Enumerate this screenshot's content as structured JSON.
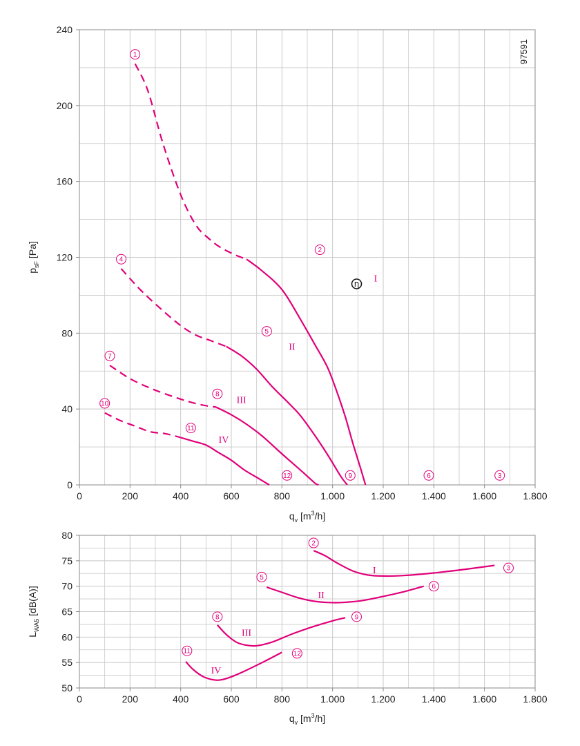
{
  "colors": {
    "curve": "#e0007a",
    "grid": "#c8c8c8",
    "frame": "#888888",
    "text": "#222222"
  },
  "chart_data": [
    {
      "type": "line",
      "id": "pressure",
      "ylabel_main": "p",
      "ylabel_sub": "sF",
      "ylabel_unit": " [Pa]",
      "xlabel_main": "q",
      "xlabel_sub": "v",
      "xlabel_unit": " [m",
      "xlabel_sup": "3",
      "xlabel_end": "/h]",
      "code": "97591",
      "xlim": [
        0,
        1800
      ],
      "ylim": [
        0,
        240
      ],
      "x_ticks": [
        0,
        200,
        400,
        600,
        800,
        1000,
        1200,
        1400,
        1600,
        1800
      ],
      "x_tick_labels": [
        "0",
        "200",
        "400",
        "600",
        "800",
        "1.000",
        "1.200",
        "1.400",
        "1.600",
        "1.800"
      ],
      "y_ticks": [
        0,
        40,
        80,
        120,
        160,
        200,
        240
      ],
      "y_tick_labels": [
        "0",
        "40",
        "80",
        "120",
        "160",
        "200",
        "240"
      ],
      "grid": true,
      "series": [
        {
          "name": "I",
          "dashed": [
            [
              220,
              222
            ],
            [
              270,
              208
            ],
            [
              330,
              180
            ],
            [
              400,
              153
            ],
            [
              460,
              137
            ],
            [
              510,
              130
            ],
            [
              560,
              125
            ],
            [
              620,
              121
            ],
            [
              660,
              119
            ]
          ],
          "solid": [
            [
              660,
              119
            ],
            [
              720,
              113
            ],
            [
              800,
              103
            ],
            [
              870,
              88
            ],
            [
              930,
              74
            ],
            [
              980,
              62
            ],
            [
              1020,
              48
            ],
            [
              1050,
              36
            ],
            [
              1080,
              22
            ],
            [
              1110,
              9
            ],
            [
              1130,
              0
            ]
          ]
        },
        {
          "name": "II",
          "dashed": [
            [
              165,
              114
            ],
            [
              240,
              103
            ],
            [
              320,
              93
            ],
            [
              400,
              84
            ],
            [
              460,
              79
            ],
            [
              520,
              76
            ],
            [
              580,
              73
            ]
          ],
          "solid": [
            [
              580,
              73
            ],
            [
              640,
              68
            ],
            [
              700,
              61
            ],
            [
              760,
              52
            ],
            [
              820,
              44
            ],
            [
              870,
              37
            ],
            [
              920,
              28
            ],
            [
              980,
              16
            ],
            [
              1030,
              5
            ],
            [
              1058,
              0
            ]
          ]
        },
        {
          "name": "III",
          "dashed": [
            [
              120,
              63
            ],
            [
              200,
              56
            ],
            [
              280,
              51
            ],
            [
              360,
              47
            ],
            [
              430,
              44
            ],
            [
              490,
              42
            ],
            [
              540,
              41
            ]
          ],
          "solid": [
            [
              540,
              41
            ],
            [
              600,
              37
            ],
            [
              660,
              32
            ],
            [
              720,
              26
            ],
            [
              770,
              20
            ],
            [
              820,
              14
            ],
            [
              880,
              7
            ],
            [
              930,
              1
            ],
            [
              945,
              0
            ]
          ]
        },
        {
          "name": "IV",
          "dashed": [
            [
              100,
              38
            ],
            [
              160,
              34
            ],
            [
              220,
              31
            ],
            [
              280,
              28
            ],
            [
              340,
              27
            ],
            [
              400,
              25
            ]
          ],
          "solid": [
            [
              400,
              25
            ],
            [
              450,
              23
            ],
            [
              500,
              21
            ],
            [
              550,
              17
            ],
            [
              600,
              13
            ],
            [
              650,
              8
            ],
            [
              700,
              4
            ],
            [
              750,
              0
            ]
          ]
        }
      ],
      "markers": [
        {
          "label": "1",
          "x": 220,
          "y": 227
        },
        {
          "label": "2",
          "x": 950,
          "y": 124
        },
        {
          "label": "3",
          "x": 1660,
          "y": 5
        },
        {
          "label": "4",
          "x": 165,
          "y": 119
        },
        {
          "label": "5",
          "x": 740,
          "y": 81
        },
        {
          "label": "6",
          "x": 1380,
          "y": 5
        },
        {
          "label": "7",
          "x": 120,
          "y": 68
        },
        {
          "label": "8",
          "x": 545,
          "y": 48
        },
        {
          "label": "9",
          "x": 1070,
          "y": 5
        },
        {
          "label": "10",
          "x": 100,
          "y": 43
        },
        {
          "label": "11",
          "x": 440,
          "y": 30
        },
        {
          "label": "12",
          "x": 820,
          "y": 5
        }
      ],
      "curve_labels": [
        {
          "text": "I",
          "x": 1170,
          "y": 109
        },
        {
          "text": "II",
          "x": 840,
          "y": 73
        },
        {
          "text": "III",
          "x": 640,
          "y": 45
        },
        {
          "text": "IV",
          "x": 570,
          "y": 24
        }
      ],
      "eta_marker": {
        "text": "η",
        "x": 1095,
        "y": 106
      }
    },
    {
      "type": "line",
      "id": "sound",
      "ylabel_main": "L",
      "ylabel_sub": "WA5",
      "ylabel_unit": " [dB(A)]",
      "xlabel_main": "q",
      "xlabel_sub": "v",
      "xlabel_unit": " [m",
      "xlabel_sup": "3",
      "xlabel_end": "/h]",
      "xlim": [
        0,
        1800
      ],
      "ylim": [
        50,
        80
      ],
      "x_ticks": [
        0,
        200,
        400,
        600,
        800,
        1000,
        1200,
        1400,
        1600,
        1800
      ],
      "x_tick_labels": [
        "0",
        "200",
        "400",
        "600",
        "800",
        "1.000",
        "1.200",
        "1.400",
        "1.600",
        "1.800"
      ],
      "y_ticks": [
        50,
        55,
        60,
        65,
        70,
        75,
        80
      ],
      "y_tick_labels": [
        "50",
        "55",
        "60",
        "65",
        "70",
        "75",
        "80"
      ],
      "grid": true,
      "series": [
        {
          "name": "I",
          "solid": [
            [
              925,
              77
            ],
            [
              970,
              76
            ],
            [
              1020,
              74.5
            ],
            [
              1080,
              73
            ],
            [
              1140,
              72.2
            ],
            [
              1200,
              72
            ],
            [
              1280,
              72.1
            ],
            [
              1400,
              72.6
            ],
            [
              1520,
              73.3
            ],
            [
              1640,
              74.1
            ]
          ]
        },
        {
          "name": "II",
          "solid": [
            [
              740,
              69.8
            ],
            [
              800,
              68.8
            ],
            [
              860,
              67.8
            ],
            [
              920,
              67.1
            ],
            [
              980,
              66.8
            ],
            [
              1040,
              66.8
            ],
            [
              1120,
              67.2
            ],
            [
              1200,
              68
            ],
            [
              1280,
              68.9
            ],
            [
              1360,
              70
            ]
          ]
        },
        {
          "name": "III",
          "solid": [
            [
              545,
              62.4
            ],
            [
              580,
              60.5
            ],
            [
              620,
              59
            ],
            [
              660,
              58.4
            ],
            [
              700,
              58.3
            ],
            [
              760,
              59
            ],
            [
              840,
              60.6
            ],
            [
              920,
              62
            ],
            [
              1000,
              63.2
            ],
            [
              1050,
              63.8
            ]
          ]
        },
        {
          "name": "IV",
          "solid": [
            [
              420,
              55.2
            ],
            [
              450,
              53.6
            ],
            [
              490,
              52.2
            ],
            [
              530,
              51.6
            ],
            [
              560,
              51.6
            ],
            [
              600,
              52.2
            ],
            [
              660,
              53.5
            ],
            [
              730,
              55.2
            ],
            [
              800,
              57
            ]
          ]
        }
      ],
      "markers": [
        {
          "label": "2",
          "x": 925,
          "y": 78.5
        },
        {
          "label": "3",
          "x": 1695,
          "y": 73.6
        },
        {
          "label": "5",
          "x": 720,
          "y": 71.8
        },
        {
          "label": "6",
          "x": 1400,
          "y": 70
        },
        {
          "label": "8",
          "x": 545,
          "y": 64
        },
        {
          "label": "9",
          "x": 1095,
          "y": 64
        },
        {
          "label": "11",
          "x": 425,
          "y": 57.3
        },
        {
          "label": "12",
          "x": 860,
          "y": 56.8
        }
      ],
      "curve_labels": [
        {
          "text": "I",
          "x": 1165,
          "y": 73.2
        },
        {
          "text": "II",
          "x": 955,
          "y": 68.3
        },
        {
          "text": "III",
          "x": 660,
          "y": 60.9
        },
        {
          "text": "IV",
          "x": 540,
          "y": 53.5
        }
      ]
    }
  ]
}
